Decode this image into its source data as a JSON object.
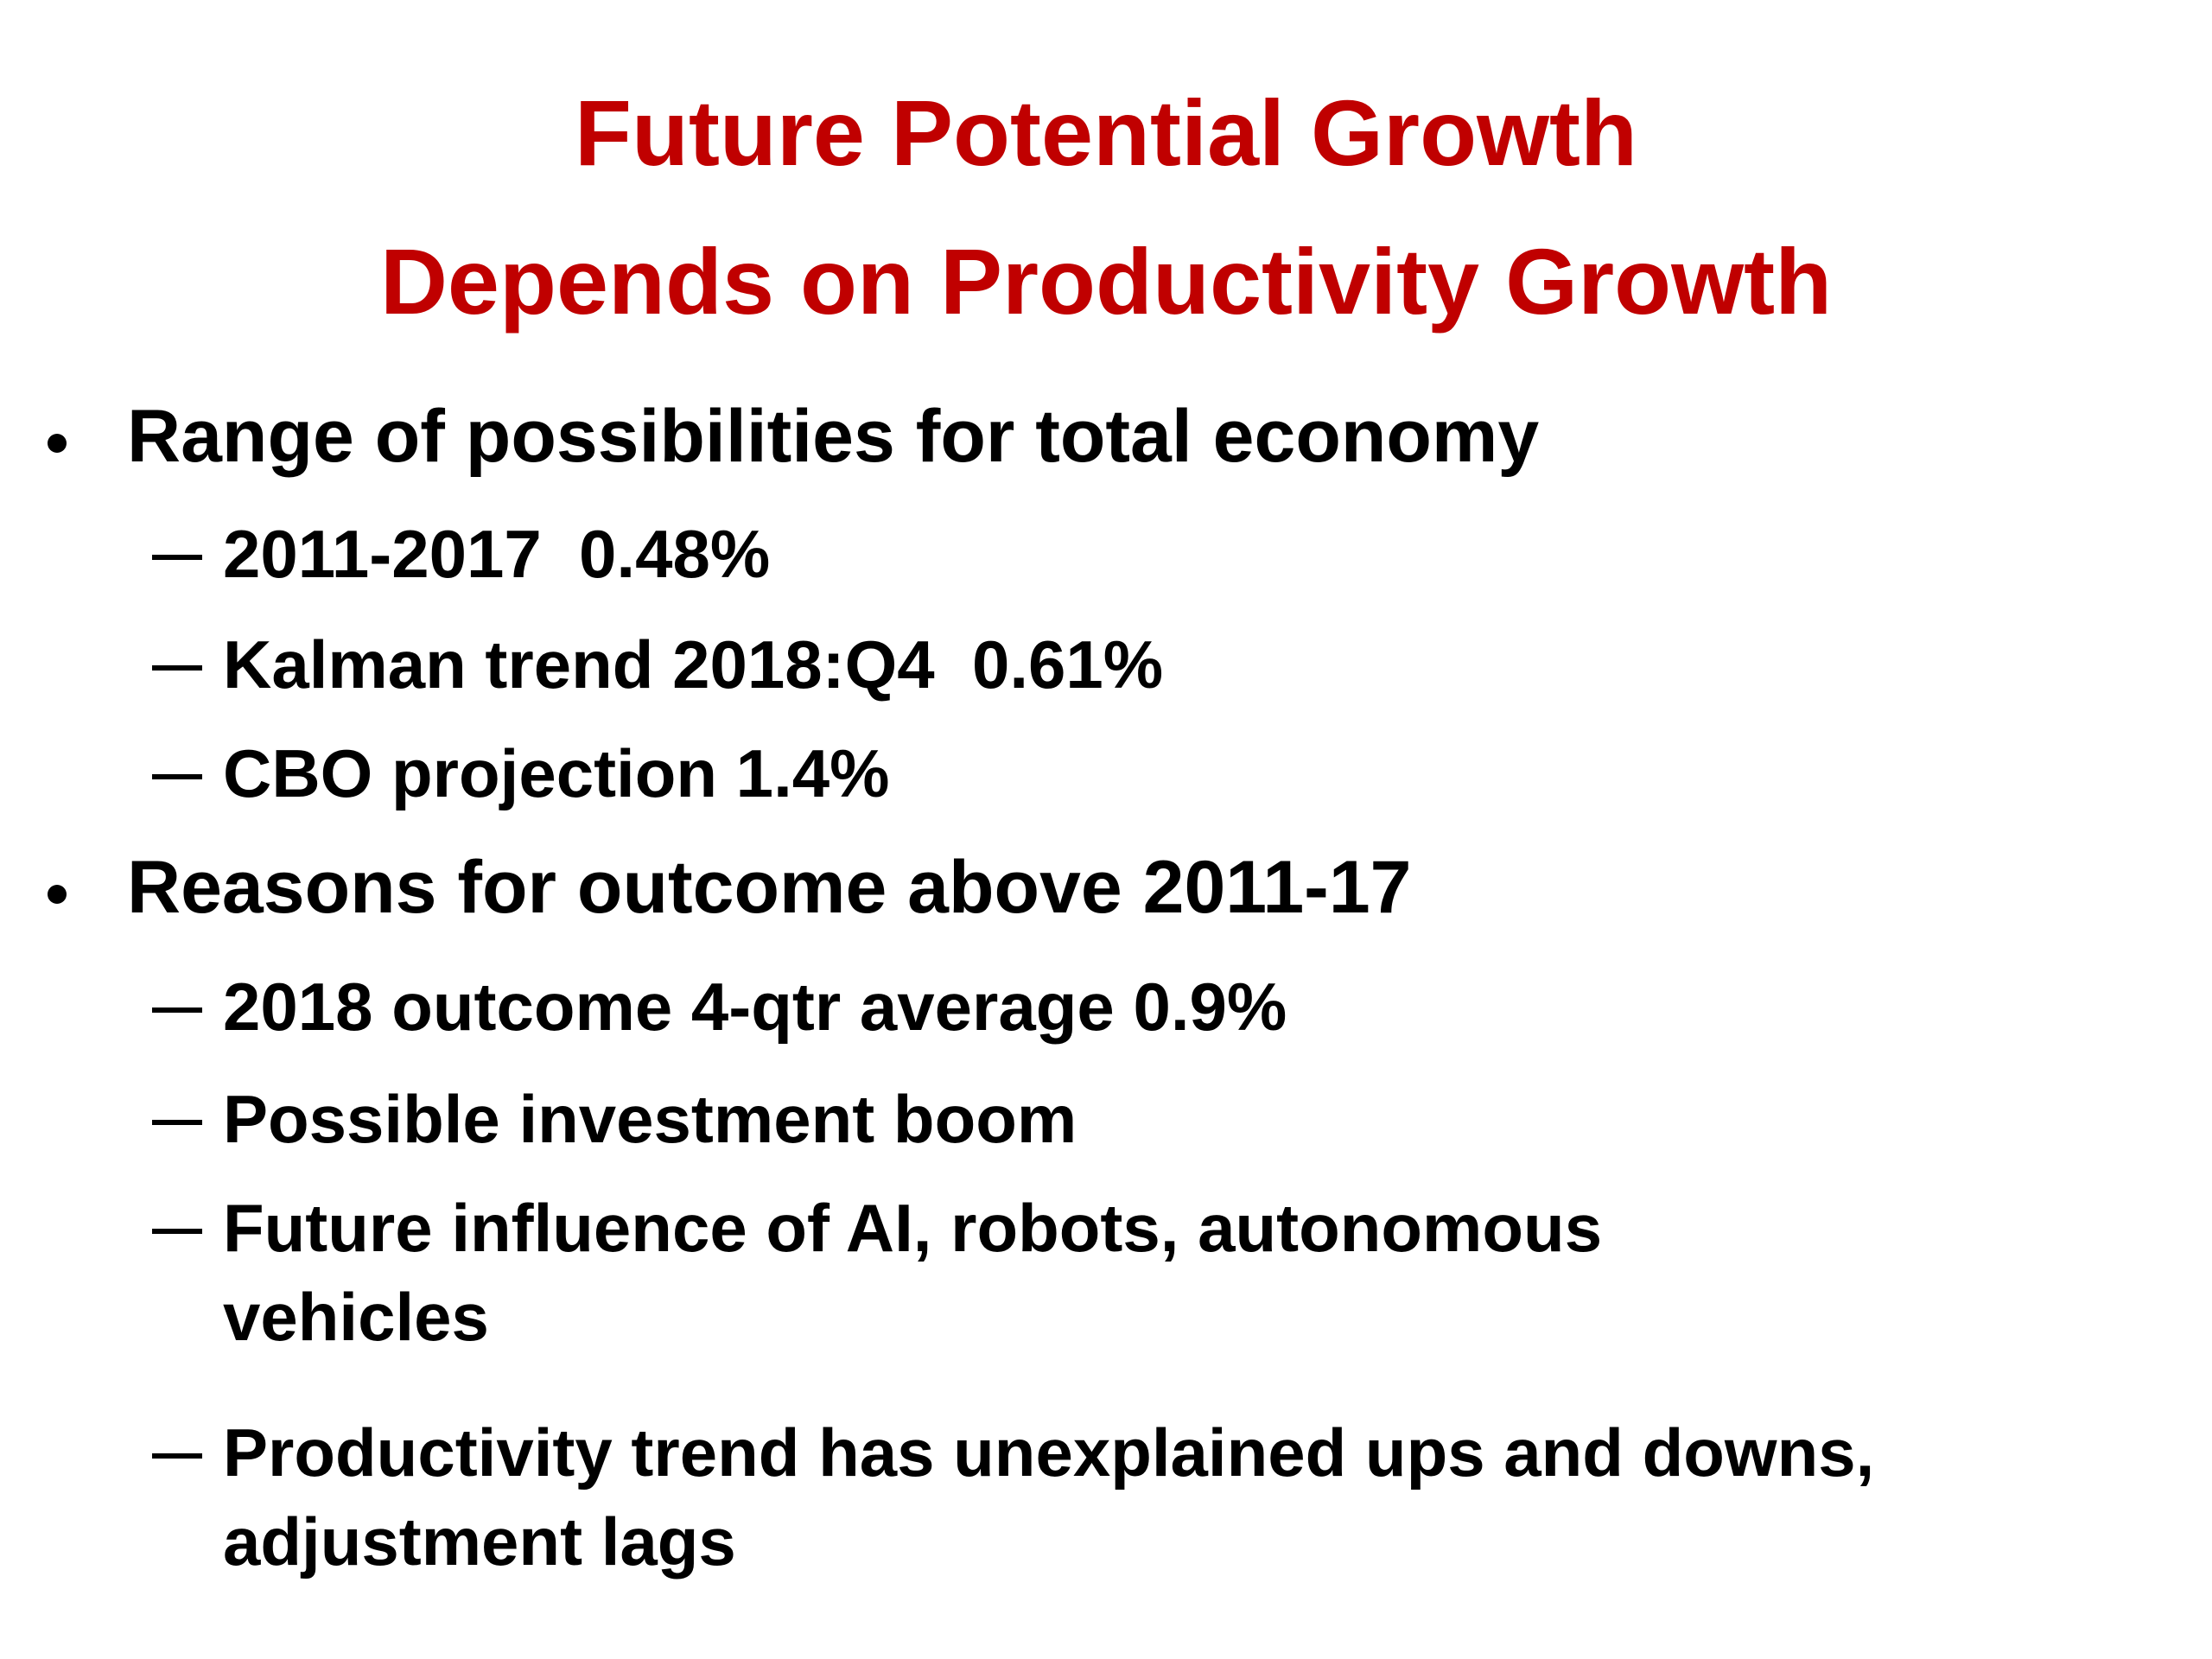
{
  "header": {
    "title": [
      "Future Potential Growth",
      "Depends on Productivity Growth"
    ]
  },
  "bullets": [
    {
      "text": "Range of possibilities for total economy",
      "items": [
        [
          "2011-2017  0.48%"
        ],
        [
          "Kalman trend 2018:Q4  0.61%"
        ],
        [
          "CBO projection 1.4%"
        ]
      ]
    },
    {
      "text": "Reasons for outcome above 2011-17",
      "items": [
        [
          "2018 outcome 4-qtr average 0.9%"
        ],
        [
          "Possible investment boom"
        ],
        [
          "Future influence of AI, robots, autonomous",
          "vehicles"
        ],
        [
          "Productivity trend has unexplained ups and downs,",
          "adjustment lags"
        ]
      ]
    }
  ]
}
